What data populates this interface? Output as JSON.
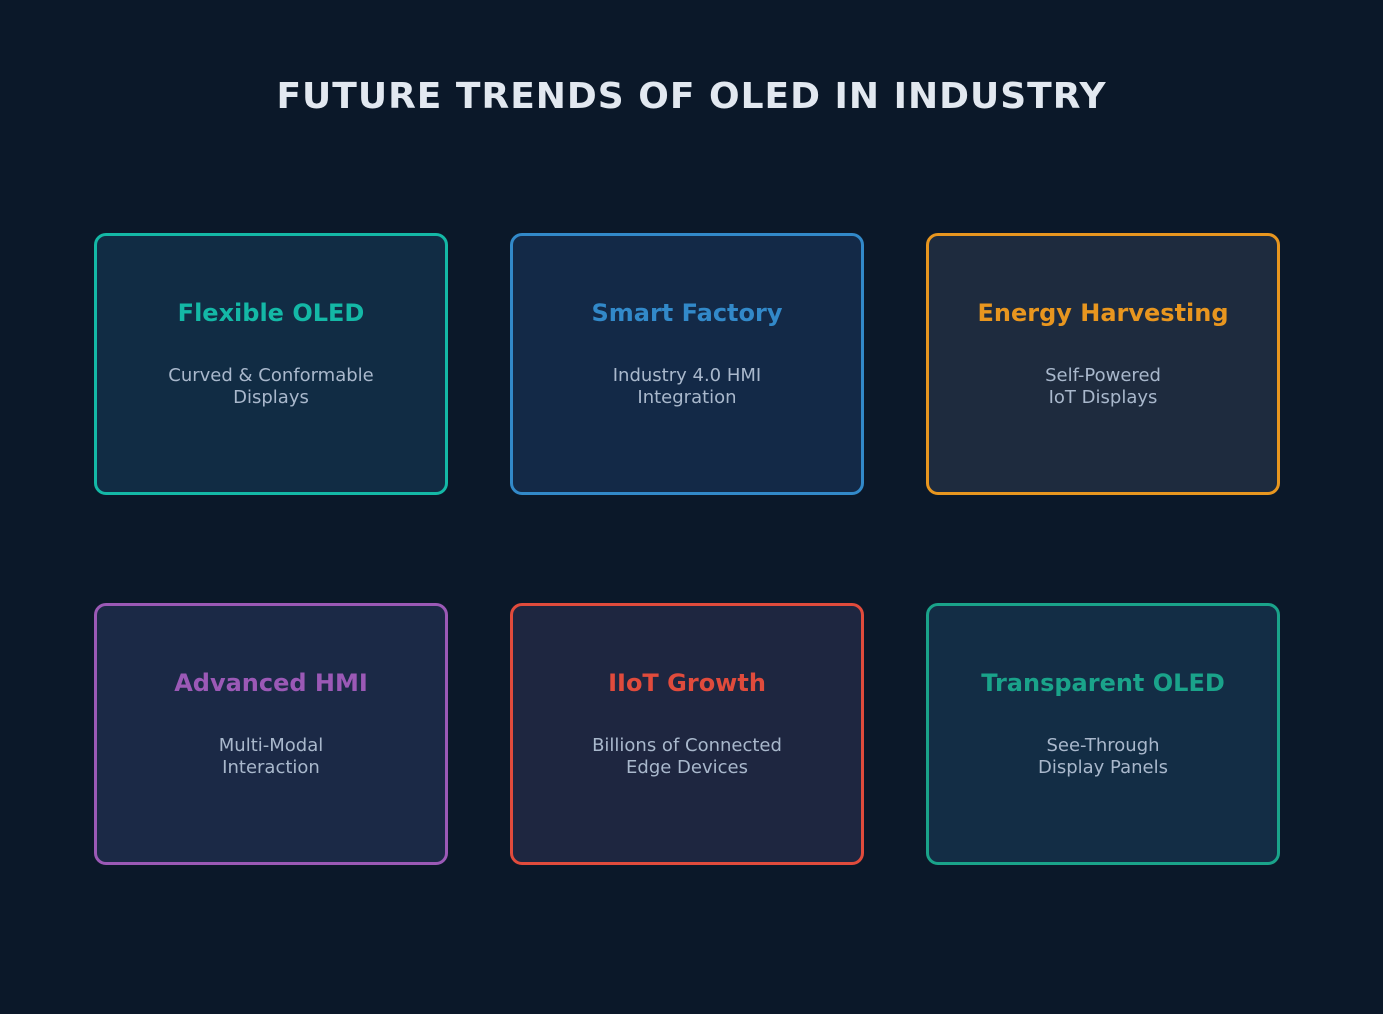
{
  "title": "FUTURE TRENDS OF OLED IN INDUSTRY",
  "cards": [
    {
      "title": "Flexible OLED",
      "lines": [
        "Curved & Conformable",
        "Displays"
      ],
      "accent": "#14b8a6",
      "bg": "#112c44"
    },
    {
      "title": "Smart Factory",
      "lines": [
        "Industry 4.0 HMI",
        "Integration"
      ],
      "accent": "#3289c9",
      "bg": "#132947"
    },
    {
      "title": "Energy Harvesting",
      "lines": [
        "Self-Powered",
        "IoT Displays"
      ],
      "accent": "#e8961f",
      "bg": "#1e2b3e"
    },
    {
      "title": "Advanced HMI",
      "lines": [
        "Multi-Modal",
        "Interaction"
      ],
      "accent": "#9b59b6",
      "bg": "#1b2946"
    },
    {
      "title": "IIoT Growth",
      "lines": [
        "Billions of Connected",
        "Edge Devices"
      ],
      "accent": "#e04b3c",
      "bg": "#1e2640"
    },
    {
      "title": "Transparent OLED",
      "lines": [
        "See-Through",
        "Display Panels"
      ],
      "accent": "#1aa38a",
      "bg": "#132d45"
    }
  ]
}
